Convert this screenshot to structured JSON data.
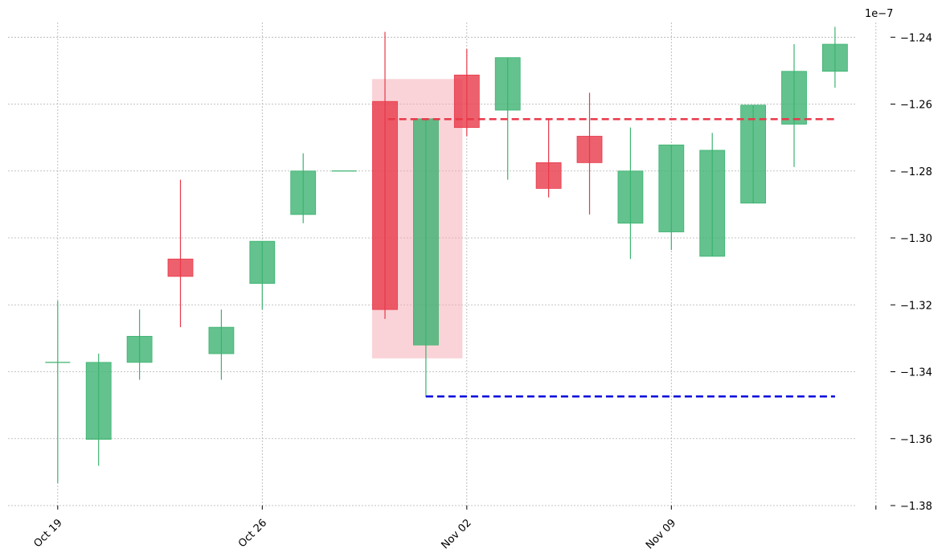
{
  "chart_data": {
    "type": "candlestick",
    "offset_text": "1e−7",
    "colors": {
      "up": "#3cb371",
      "down": "#e8394a",
      "highlight": "#f4a7b0",
      "resistance": "#e8394a",
      "support": "#0000dd"
    },
    "x_ticks": [
      {
        "day": 0,
        "label": "Oct 19"
      },
      {
        "day": 7,
        "label": "Oct 26"
      },
      {
        "day": 14,
        "label": "Nov 02"
      },
      {
        "day": 21,
        "label": "Nov 09"
      },
      {
        "day": 28,
        "label": ""
      }
    ],
    "xlim": [
      -1.7,
      28.5
    ],
    "ylim": [
      -1.38,
      -1.2308
    ],
    "y_ticks": [
      {
        "value": -1.24,
        "label": "−1.24"
      },
      {
        "value": -1.26,
        "label": "−1.26"
      },
      {
        "value": -1.28,
        "label": "−1.28"
      },
      {
        "value": -1.3,
        "label": "−1.30"
      },
      {
        "value": -1.32,
        "label": "−1.32"
      },
      {
        "value": -1.34,
        "label": "−1.34"
      },
      {
        "value": -1.36,
        "label": "−1.36"
      },
      {
        "value": -1.38,
        "label": "−1.38"
      }
    ],
    "candles": [
      {
        "day": 0,
        "open": -1.3372,
        "high": -1.3188,
        "low": -1.3733,
        "close": -1.3372
      },
      {
        "day": 1.4,
        "open": -1.3602,
        "high": -1.3346,
        "low": -1.3681,
        "close": -1.3372
      },
      {
        "day": 2.8,
        "open": -1.3372,
        "high": -1.3214,
        "low": -1.3424,
        "close": -1.3294
      },
      {
        "day": 4.2,
        "open": -1.3063,
        "high": -1.2826,
        "low": -1.3267,
        "close": -1.3115
      },
      {
        "day": 5.6,
        "open": -1.3346,
        "high": -1.3214,
        "low": -1.3424,
        "close": -1.3267
      },
      {
        "day": 7,
        "open": -1.3136,
        "high": -1.301,
        "low": -1.3214,
        "close": -1.301
      },
      {
        "day": 8.4,
        "open": -1.293,
        "high": -1.2747,
        "low": -1.2956,
        "close": -1.28
      },
      {
        "day": 9.8,
        "open": -1.28,
        "high": -1.28,
        "low": -1.28,
        "close": -1.28
      },
      {
        "day": 11.2,
        "open": -1.2592,
        "high": -1.2384,
        "low": -1.3242,
        "close": -1.3214
      },
      {
        "day": 12.6,
        "open": -1.332,
        "high": -1.2644,
        "low": -1.3476,
        "close": -1.2644
      },
      {
        "day": 14,
        "open": -1.2513,
        "high": -1.2435,
        "low": -1.2696,
        "close": -1.267
      },
      {
        "day": 15.4,
        "open": -1.2618,
        "high": -1.2461,
        "low": -1.2826,
        "close": -1.2461
      },
      {
        "day": 16.8,
        "open": -1.2775,
        "high": -1.2644,
        "low": -1.2879,
        "close": -1.2852
      },
      {
        "day": 18.2,
        "open": -1.2696,
        "high": -1.2566,
        "low": -1.293,
        "close": -1.2775
      },
      {
        "day": 19.6,
        "open": -1.2956,
        "high": -1.267,
        "low": -1.3063,
        "close": -1.28
      },
      {
        "day": 21,
        "open": -1.2982,
        "high": -1.2722,
        "low": -1.3036,
        "close": -1.2722
      },
      {
        "day": 22.4,
        "open": -1.3055,
        "high": -1.2686,
        "low": -1.3055,
        "close": -1.2738
      },
      {
        "day": 23.8,
        "open": -1.2896,
        "high": -1.2603,
        "low": -1.2896,
        "close": -1.2603
      },
      {
        "day": 25.2,
        "open": -1.266,
        "high": -1.2421,
        "low": -1.2788,
        "close": -1.2502
      },
      {
        "day": 26.6,
        "open": -1.2502,
        "high": -1.2369,
        "low": -1.2551,
        "close": -1.2421
      }
    ],
    "highlight_range": {
      "day_start": 10.76,
      "day_end": 13.85,
      "top": -1.2525,
      "bottom": -1.336
    },
    "resistance_line": {
      "value": -1.2645,
      "day_start": 11.3,
      "day_end": 26.6
    },
    "support_line": {
      "value": -1.3474,
      "day_start": 12.6,
      "day_end": 26.6
    }
  }
}
